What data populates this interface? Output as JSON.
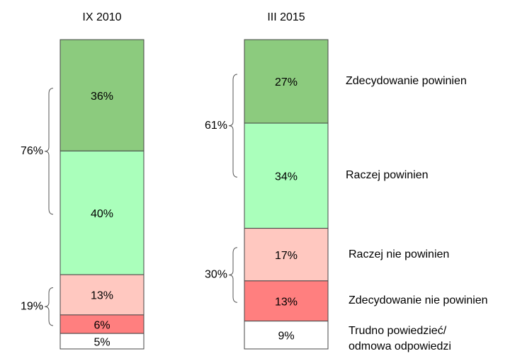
{
  "chart_data": {
    "type": "stacked-bar",
    "categories": [
      "IX 2010",
      "III 2015"
    ],
    "series": [
      {
        "name": "Zdecydowanie powinien",
        "color": "#8ccb7e",
        "values": [
          36,
          27
        ],
        "value_labels": [
          "36%",
          "27%"
        ]
      },
      {
        "name": "Raczej powinien",
        "color": "#aaffbb",
        "values": [
          40,
          34
        ],
        "value_labels": [
          "40%",
          "34%"
        ]
      },
      {
        "name": "Raczej nie powinien",
        "color": "#ffc8c0",
        "values": [
          13,
          17
        ],
        "value_labels": [
          "13%",
          "17%"
        ]
      },
      {
        "name": "Zdecydowanie nie powinien",
        "color": "#ff7f7f",
        "values": [
          6,
          13
        ],
        "value_labels": [
          "6%",
          "13%"
        ]
      },
      {
        "name": "Trudno powiedzieć/\nodmowa odpowiedzi",
        "color": "#ffffff",
        "values": [
          5,
          9
        ],
        "value_labels": [
          "5%",
          "9%"
        ]
      }
    ],
    "annotations": [
      {
        "category": 0,
        "series": [
          0,
          1
        ],
        "value": 76,
        "value_label": "76%"
      },
      {
        "category": 0,
        "series": [
          2,
          3
        ],
        "value": 19,
        "value_label": "19%"
      },
      {
        "category": 1,
        "series": [
          0,
          1
        ],
        "value": 61,
        "value_label": "61%"
      },
      {
        "category": 1,
        "series": [
          2,
          3
        ],
        "value": 30,
        "value_label": "30%"
      }
    ]
  }
}
